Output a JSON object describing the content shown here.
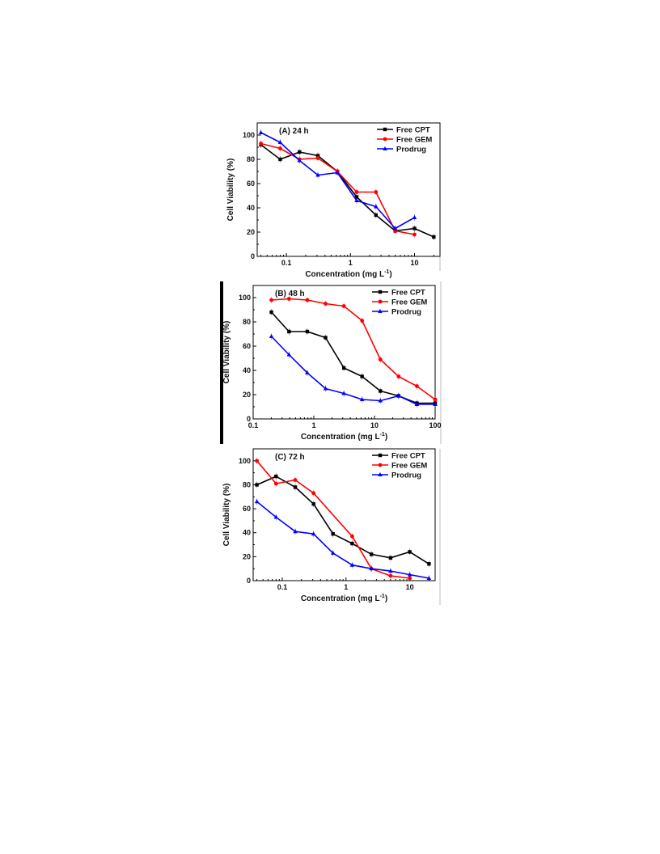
{
  "chart_data": [
    {
      "type": "line",
      "title": "(A) 24 h",
      "xlabel": "Concentration (mg L",
      "xlabel_sup": "-1",
      "xlabel_end": ")",
      "ylabel": "Cell Viability (%)",
      "xscale": "log",
      "xlim": [
        0.035,
        25
      ],
      "ylim": [
        0,
        110
      ],
      "xticks": [
        0.1,
        1,
        10
      ],
      "xtick_labels": [
        "0.1",
        "1",
        "10"
      ],
      "yticks": [
        0,
        20,
        40,
        60,
        80,
        100
      ],
      "ytick_labels": [
        "0",
        "20",
        "40",
        "60",
        "80",
        "100"
      ],
      "legend": "top-right",
      "grid": false,
      "series": [
        {
          "name": "Free CPT",
          "color": "#000000",
          "marker": "square",
          "x": [
            0.04,
            0.08,
            0.16,
            0.31,
            0.625,
            1.25,
            2.5,
            5,
            10,
            20
          ],
          "y": [
            92,
            80,
            86,
            83,
            70,
            49,
            34,
            21,
            23,
            16
          ]
        },
        {
          "name": "Free GEM",
          "color": "#ff0000",
          "marker": "circle",
          "x": [
            0.04,
            0.08,
            0.16,
            0.31,
            0.625,
            1.25,
            2.5,
            5,
            10
          ],
          "y": [
            93,
            89,
            80,
            81,
            70,
            53,
            53,
            21,
            18
          ]
        },
        {
          "name": "Prodrug",
          "color": "#0000ff",
          "marker": "triangle",
          "x": [
            0.04,
            0.08,
            0.16,
            0.31,
            0.625,
            1.25,
            2.5,
            5,
            10
          ],
          "y": [
            102,
            94,
            79,
            67,
            69,
            46,
            41,
            23,
            32
          ]
        }
      ]
    },
    {
      "type": "line",
      "title": "(B) 48 h",
      "xlabel": "Concentration (mg L",
      "xlabel_sup": "-1",
      "xlabel_end": ")",
      "ylabel": "Cell Viability (%)",
      "xscale": "log",
      "xlim": [
        0.1,
        100
      ],
      "ylim": [
        0,
        110
      ],
      "xticks": [
        0.1,
        1,
        10,
        100
      ],
      "xtick_labels": [
        "0.1",
        "1",
        "10",
        "100"
      ],
      "yticks": [
        0,
        20,
        40,
        60,
        80,
        100
      ],
      "ytick_labels": [
        "0",
        "20",
        "40",
        "60",
        "80",
        "100"
      ],
      "legend": "top-right",
      "grid": false,
      "series": [
        {
          "name": "Free CPT",
          "color": "#000000",
          "marker": "square",
          "x": [
            0.2,
            0.39,
            0.78,
            1.56,
            3.13,
            6.25,
            12.5,
            25,
            50,
            100
          ],
          "y": [
            88,
            72,
            72,
            67,
            42,
            35,
            23,
            19,
            13,
            13
          ]
        },
        {
          "name": "Free GEM",
          "color": "#ff0000",
          "marker": "circle",
          "x": [
            0.2,
            0.39,
            0.78,
            1.56,
            3.13,
            6.25,
            12.5,
            25,
            50,
            100
          ],
          "y": [
            98,
            99,
            98,
            95,
            93,
            81,
            49,
            35,
            27,
            16
          ]
        },
        {
          "name": "Prodrug",
          "color": "#0000ff",
          "marker": "triangle",
          "x": [
            0.2,
            0.39,
            0.78,
            1.56,
            3.13,
            6.25,
            12.5,
            25,
            50,
            100
          ],
          "y": [
            68,
            53,
            38,
            25,
            21,
            16,
            15,
            19,
            12,
            12
          ]
        }
      ]
    },
    {
      "type": "line",
      "title": "(C) 72 h",
      "xlabel": "Concentration (mg L",
      "xlabel_sup": "-1",
      "xlabel_end": ")",
      "ylabel": "Cell Viability (%)",
      "xscale": "log",
      "xlim": [
        0.035,
        25
      ],
      "ylim": [
        0,
        110
      ],
      "xticks": [
        0.1,
        1,
        10
      ],
      "xtick_labels": [
        "0.1",
        "1",
        "10"
      ],
      "yticks": [
        0,
        20,
        40,
        60,
        80,
        100
      ],
      "ytick_labels": [
        "0",
        "20",
        "40",
        "60",
        "80",
        "100"
      ],
      "legend": "top-right",
      "grid": false,
      "series": [
        {
          "name": "Free CPT",
          "color": "#000000",
          "marker": "square",
          "x": [
            0.04,
            0.08,
            0.16,
            0.31,
            0.625,
            1.25,
            2.5,
            5,
            10,
            20
          ],
          "y": [
            80,
            87,
            78,
            64,
            39,
            31,
            22,
            19,
            24,
            14
          ]
        },
        {
          "name": "Free GEM",
          "color": "#ff0000",
          "marker": "circle",
          "x": [
            0.04,
            0.08,
            0.16,
            0.31,
            1.25,
            2.5,
            5,
            10
          ],
          "y": [
            100,
            81,
            84,
            73,
            37,
            10,
            4,
            2
          ]
        },
        {
          "name": "Prodrug",
          "color": "#0000ff",
          "marker": "triangle",
          "x": [
            0.04,
            0.08,
            0.16,
            0.31,
            0.625,
            1.25,
            2.5,
            5,
            10,
            20
          ],
          "y": [
            66,
            53,
            41,
            39,
            23,
            13,
            10,
            8,
            5,
            2
          ]
        }
      ]
    }
  ]
}
